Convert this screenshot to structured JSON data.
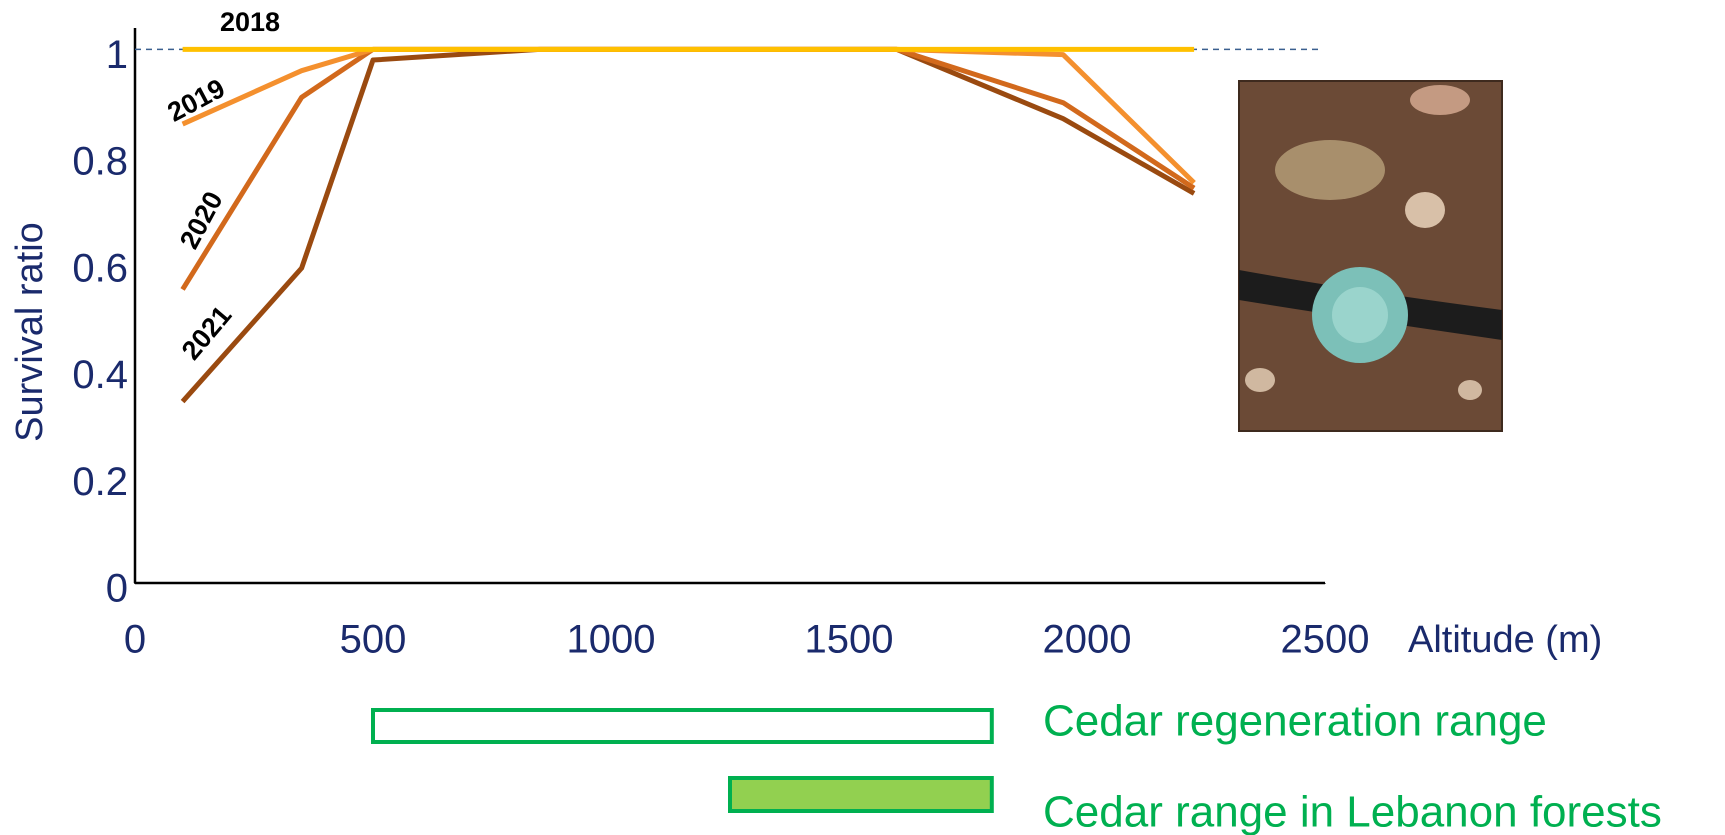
{
  "chart_data": {
    "type": "line",
    "x_label": "Altitude (m)",
    "y_label": "Survival ratio",
    "x": [
      100,
      350,
      500,
      850,
      1600,
      1950,
      2225
    ],
    "series": [
      {
        "name": "2018",
        "color": "#ffc000",
        "values": [
          1,
          1,
          1,
          1,
          1,
          1,
          1
        ]
      },
      {
        "name": "2019",
        "color": "#f4902e",
        "values": [
          0.86,
          0.96,
          1,
          1,
          1,
          0.99,
          0.75
        ]
      },
      {
        "name": "2020",
        "color": "#d2691c",
        "values": [
          0.55,
          0.91,
          1,
          1,
          1,
          0.9,
          0.74
        ]
      },
      {
        "name": "2021",
        "color": "#9a4a10",
        "values": [
          0.34,
          0.59,
          0.98,
          1,
          1,
          0.87,
          0.73
        ]
      }
    ],
    "xlim": [
      0,
      2500
    ],
    "ylim": [
      0,
      1.04
    ],
    "xticks": [
      0,
      500,
      1000,
      1500,
      2000,
      2500
    ],
    "yticks": [
      0,
      0.2,
      0.4,
      0.6,
      0.8,
      1
    ],
    "hline": 1,
    "ranges": [
      {
        "label": "Cedar regeneration range",
        "start": 500,
        "end": 1800,
        "filled": false
      },
      {
        "label": "Cedar range in Lebanon forests",
        "start": 1250,
        "end": 1800,
        "filled": true
      }
    ],
    "range_color": "#00b050",
    "range_fill": "#92d050"
  }
}
